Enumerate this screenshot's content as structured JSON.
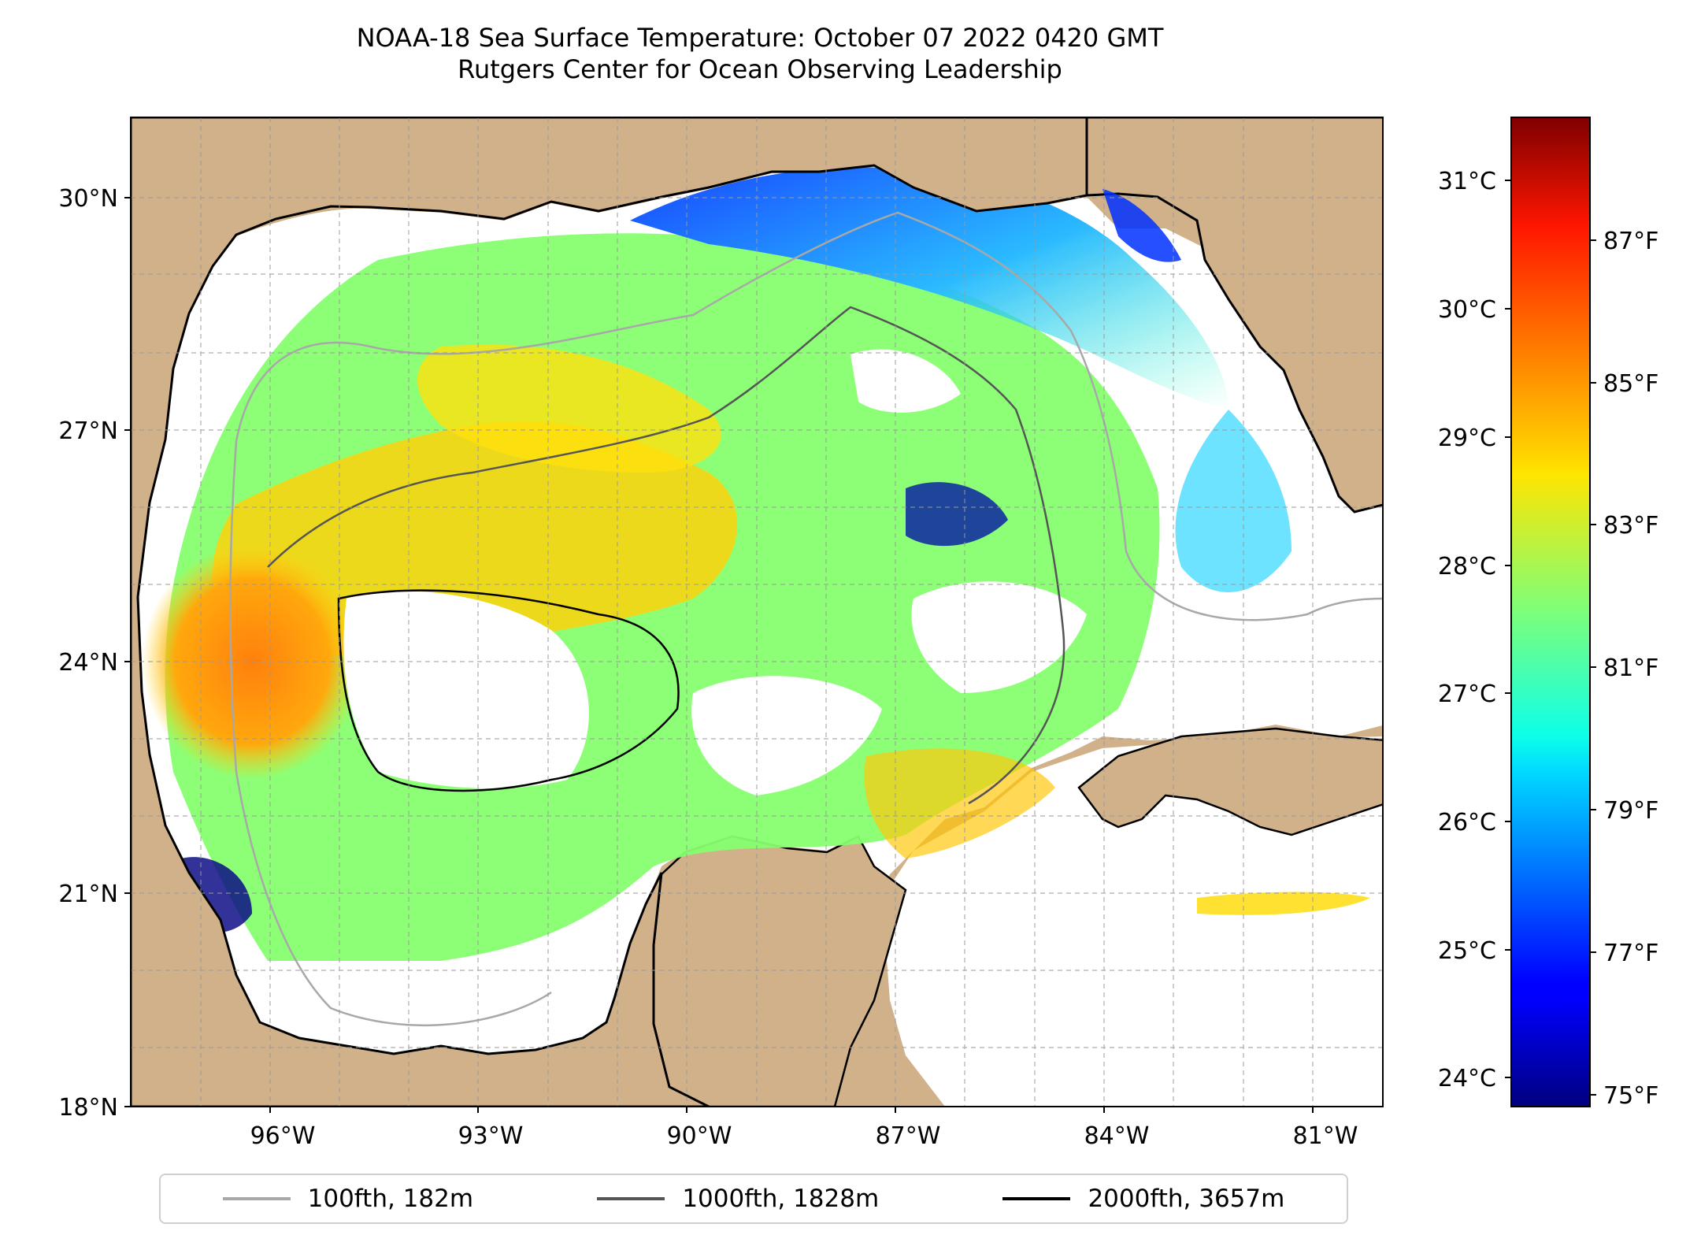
{
  "title": "NOAA-18 Sea Surface Temperature: October 07 2022 0420 GMT",
  "subtitle": "Rutgers Center for Ocean Observing Leadership",
  "map": {
    "lon_range": [
      -98,
      -80
    ],
    "lat_range": [
      18,
      31
    ],
    "lat_ticks": [
      "30°N",
      "27°N",
      "24°N",
      "21°N",
      "18°N"
    ],
    "lon_ticks": [
      "96°W",
      "93°W",
      "90°W",
      "87°W",
      "84°W",
      "81°W"
    ],
    "colors": {
      "land": "#d1b18a",
      "cloud": "#ffffff",
      "coast": "#000000"
    }
  },
  "colorbar": {
    "celsius_ticks": [
      "31°C",
      "30°C",
      "29°C",
      "28°C",
      "27°C",
      "26°C",
      "25°C",
      "24°C"
    ],
    "fahrenheit_ticks": [
      "87°F",
      "85°F",
      "83°F",
      "81°F",
      "79°F",
      "77°F",
      "75°F"
    ],
    "colormap": "jet"
  },
  "legend": [
    {
      "label": "100fth, 182m",
      "color": "#a8a8a8"
    },
    {
      "label": "1000fth, 1828m",
      "color": "#555555"
    },
    {
      "label": "2000fth, 3657m",
      "color": "#000000"
    }
  ]
}
